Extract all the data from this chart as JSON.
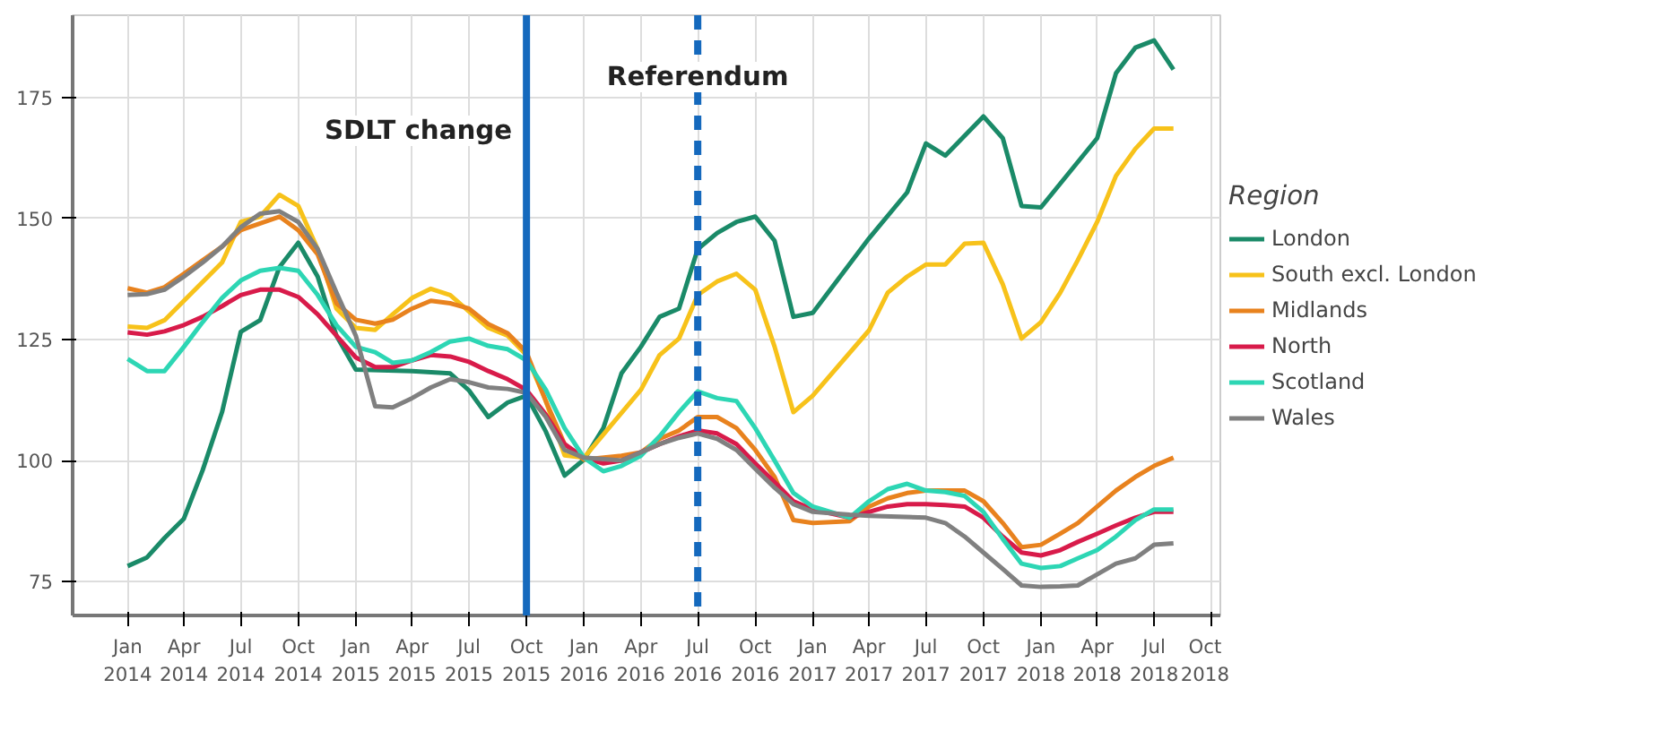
{
  "chart_data": {
    "type": "line",
    "legend_title": "Region",
    "legend": "right",
    "grid": true,
    "line_style": "solid",
    "xlim": [
      "2013-10-05",
      "2018-10-15"
    ],
    "ylim": [
      68,
      192
    ],
    "yticks": [
      75,
      100,
      125,
      150,
      175
    ],
    "xticks": [
      {
        "value": "2014-01",
        "label": "Jan 2014"
      },
      {
        "value": "2014-04",
        "label": "Apr 2014"
      },
      {
        "value": "2014-07",
        "label": "Jul 2014"
      },
      {
        "value": "2014-10",
        "label": "Oct 2014"
      },
      {
        "value": "2015-01",
        "label": "Jan 2015"
      },
      {
        "value": "2015-04",
        "label": "Apr 2015"
      },
      {
        "value": "2015-07",
        "label": "Jul 2015"
      },
      {
        "value": "2015-10",
        "label": "Oct 2015"
      },
      {
        "value": "2016-01",
        "label": "Jan 2016"
      },
      {
        "value": "2016-04",
        "label": "Apr 2016"
      },
      {
        "value": "2016-07",
        "label": "Jul 2016"
      },
      {
        "value": "2016-10",
        "label": "Oct 2016"
      },
      {
        "value": "2017-01",
        "label": "Jan 2017"
      },
      {
        "value": "2017-04",
        "label": "Apr 2017"
      },
      {
        "value": "2017-07",
        "label": "Jul 2017"
      },
      {
        "value": "2017-10",
        "label": "Oct 2017"
      },
      {
        "value": "2018-01",
        "label": "Jan 2018"
      },
      {
        "value": "2018-04",
        "label": "Apr 2018"
      },
      {
        "value": "2018-07",
        "label": "Jul 2018"
      },
      {
        "value": "2018-10",
        "label": "Oct 2018"
      }
    ],
    "ref_lines": [
      {
        "axis": "x",
        "value": "2015-10",
        "label": "SDLT change",
        "color": "#1569bd",
        "line_style": "solid"
      },
      {
        "axis": "x",
        "value": "2016-07",
        "label": "Referendum",
        "color": "#1569bd",
        "line_style": "dashed"
      }
    ],
    "series": [
      {
        "name": "London",
        "color": "#1a8a68",
        "x": [
          "2014-01",
          "2014-02",
          "2014-03",
          "2014-04",
          "2014-05",
          "2014-06",
          "2014-07",
          "2014-08",
          "2014-09",
          "2014-10",
          "2014-11",
          "2014-12",
          "2015-01",
          "2015-04",
          "2015-06",
          "2015-07",
          "2015-08",
          "2015-09",
          "2015-10",
          "2015-11",
          "2015-12",
          "2016-01",
          "2016-02",
          "2016-03",
          "2016-04",
          "2016-05",
          "2016-06",
          "2016-07",
          "2016-08",
          "2016-09",
          "2016-10",
          "2016-11",
          "2016-12",
          "2017-01",
          "2017-04",
          "2017-06",
          "2017-07",
          "2017-08",
          "2017-10",
          "2017-11",
          "2017-12",
          "2018-01",
          "2018-04",
          "2018-05",
          "2018-06",
          "2018-07",
          "2018-08"
        ],
        "values": [
          78.2,
          80,
          84,
          88,
          98,
          110,
          126.6,
          129,
          140,
          145,
          138,
          125.8,
          118.8,
          118.5,
          118,
          114.5,
          109,
          112,
          113.4,
          106,
          96.9,
          100.2,
          106.7,
          118,
          123.5,
          129.7,
          131.4,
          143.7,
          147,
          149.3,
          150.4,
          145.4,
          129.7,
          130.5,
          145.9,
          155.4,
          165.5,
          163,
          171.1,
          166.6,
          152.6,
          152.3,
          166.6,
          180,
          185.3,
          186.8,
          180.8
        ]
      },
      {
        "name": "South excl. London",
        "color": "#f7c21a",
        "x": [
          "2014-01",
          "2014-02",
          "2014-03",
          "2014-04",
          "2014-06",
          "2014-07",
          "2014-08",
          "2014-09",
          "2014-10",
          "2014-11",
          "2014-12",
          "2015-01",
          "2015-02",
          "2015-03",
          "2015-04",
          "2015-05",
          "2015-06",
          "2015-07",
          "2015-08",
          "2015-09",
          "2015-10",
          "2015-11",
          "2015-12",
          "2016-01",
          "2016-04",
          "2016-05",
          "2016-06",
          "2016-07",
          "2016-08",
          "2016-09",
          "2016-10",
          "2016-11",
          "2016-12",
          "2017-01",
          "2017-04",
          "2017-05",
          "2017-06",
          "2017-07",
          "2017-08",
          "2017-09",
          "2017-10",
          "2017-11",
          "2017-12",
          "2018-01",
          "2018-02",
          "2018-03",
          "2018-04",
          "2018-05",
          "2018-06",
          "2018-07",
          "2018-08"
        ],
        "values": [
          127.7,
          127.4,
          129,
          133,
          140.9,
          149.3,
          150.4,
          154.9,
          152.6,
          143.7,
          131.4,
          127.4,
          127,
          130.2,
          133.6,
          135.5,
          134.2,
          130.8,
          127.4,
          125.8,
          121.8,
          112.3,
          101.1,
          100.6,
          114.6,
          121.8,
          125.2,
          134.2,
          137,
          138.6,
          135.3,
          123.5,
          110,
          113.4,
          126.9,
          134.7,
          138,
          140.5,
          140.5,
          144.8,
          145,
          136.4,
          125.2,
          128.6,
          134.7,
          141.4,
          149.3,
          158.8,
          164.4,
          168.6,
          168.6
        ]
      },
      {
        "name": "Midlands",
        "color": "#e8821e",
        "x": [
          "2014-01",
          "2014-02",
          "2014-03",
          "2014-04",
          "2014-05",
          "2014-06",
          "2014-07",
          "2014-08",
          "2014-09",
          "2014-10",
          "2014-11",
          "2014-12",
          "2015-01",
          "2015-02",
          "2015-03",
          "2015-04",
          "2015-05",
          "2015-06",
          "2015-07",
          "2015-08",
          "2015-09",
          "2015-10",
          "2015-11",
          "2015-12",
          "2016-01",
          "2016-03",
          "2016-04",
          "2016-05",
          "2016-06",
          "2016-07",
          "2016-08",
          "2016-09",
          "2016-10",
          "2016-11",
          "2016-12",
          "2017-01",
          "2017-03",
          "2017-04",
          "2017-05",
          "2017-06",
          "2017-07",
          "2017-08",
          "2017-09",
          "2017-10",
          "2017-11",
          "2017-12",
          "2018-01",
          "2018-02",
          "2018-03",
          "2018-04",
          "2018-05",
          "2018-06",
          "2018-07",
          "2018-08"
        ],
        "values": [
          135.6,
          134.7,
          135.8,
          138.6,
          141.4,
          144.2,
          147.6,
          149,
          150.4,
          147.6,
          142.6,
          132.5,
          129.1,
          128.3,
          129.1,
          131.4,
          133,
          132.5,
          131.4,
          128.2,
          126.3,
          122.4,
          112.3,
          103.4,
          100.2,
          101,
          101.7,
          104.5,
          106.2,
          109,
          109,
          106.7,
          102.2,
          96.6,
          87.7,
          87.1,
          87.5,
          90.5,
          92.2,
          93.3,
          93.8,
          93.8,
          93.8,
          91.6,
          87.1,
          82.1,
          82.6,
          84.9,
          87.1,
          90.5,
          93.8,
          96.6,
          98.9,
          100.6
        ]
      },
      {
        "name": "North",
        "color": "#d81b4a",
        "x": [
          "2014-01",
          "2014-02",
          "2014-03",
          "2014-04",
          "2014-05",
          "2014-06",
          "2014-07",
          "2014-08",
          "2014-09",
          "2014-10",
          "2014-11",
          "2014-12",
          "2015-01",
          "2015-02",
          "2015-03",
          "2015-04",
          "2015-05",
          "2015-06",
          "2015-07",
          "2015-08",
          "2015-09",
          "2015-10",
          "2015-11",
          "2015-12",
          "2016-01",
          "2016-02",
          "2016-03",
          "2016-04",
          "2016-05",
          "2016-06",
          "2016-07",
          "2016-08",
          "2016-09",
          "2016-10",
          "2016-11",
          "2016-12",
          "2017-01",
          "2017-03",
          "2017-04",
          "2017-05",
          "2017-06",
          "2017-07",
          "2017-08",
          "2017-09",
          "2017-10",
          "2017-11",
          "2017-12",
          "2018-01",
          "2018-02",
          "2018-03",
          "2018-04",
          "2018-05",
          "2018-06",
          "2018-07",
          "2018-08"
        ],
        "values": [
          126.5,
          126,
          126.7,
          128,
          129.7,
          131.9,
          134.2,
          135.3,
          135.3,
          133.8,
          130.2,
          125.8,
          121.3,
          119.3,
          119.3,
          120.7,
          121.8,
          121.5,
          120.4,
          118.5,
          116.8,
          114.6,
          109.5,
          103.4,
          100.6,
          99.4,
          100,
          101.7,
          103.4,
          105,
          106.2,
          105.6,
          103.4,
          99.4,
          95.5,
          91.6,
          89.9,
          88.2,
          89.4,
          90.5,
          91,
          91,
          90.8,
          90.5,
          88.2,
          84.3,
          81,
          80.4,
          81.5,
          83.2,
          84.9,
          86.6,
          88.2,
          89.4,
          89.4
        ]
      },
      {
        "name": "Scotland",
        "color": "#2dd6b4",
        "x": [
          "2014-01",
          "2014-02",
          "2014-03",
          "2014-04",
          "2014-05",
          "2014-06",
          "2014-07",
          "2014-08",
          "2014-09",
          "2014-10",
          "2014-11",
          "2014-12",
          "2015-01",
          "2015-02",
          "2015-03",
          "2015-04",
          "2015-05",
          "2015-06",
          "2015-07",
          "2015-08",
          "2015-09",
          "2015-10",
          "2015-11",
          "2015-12",
          "2016-01",
          "2016-02",
          "2016-03",
          "2016-04",
          "2016-05",
          "2016-06",
          "2016-07",
          "2016-08",
          "2016-09",
          "2016-10",
          "2016-11",
          "2016-12",
          "2017-01",
          "2017-03",
          "2017-04",
          "2017-05",
          "2017-06",
          "2017-07",
          "2017-08",
          "2017-09",
          "2017-10",
          "2017-11",
          "2017-12",
          "2018-01",
          "2018-02",
          "2018-03",
          "2018-04",
          "2018-05",
          "2018-06",
          "2018-07",
          "2018-08"
        ],
        "values": [
          121,
          118.5,
          118.5,
          123.5,
          128.6,
          133.6,
          137.2,
          139.2,
          139.8,
          139.2,
          134.2,
          128,
          123.5,
          122.4,
          120.2,
          120.7,
          122.4,
          124.6,
          125.2,
          123.7,
          123,
          120.7,
          114.6,
          106.7,
          100.6,
          97.8,
          98.9,
          101,
          105,
          110,
          114.3,
          112.9,
          112.3,
          106.7,
          100,
          93.3,
          90.5,
          88.2,
          91.6,
          94.1,
          95.2,
          93.8,
          93.5,
          92.7,
          89.4,
          83.8,
          78.7,
          77.8,
          78.2,
          79.8,
          81.5,
          84.3,
          87.7,
          89.9,
          89.9
        ]
      },
      {
        "name": "Wales",
        "color": "#808080",
        "x": [
          "2014-01",
          "2014-02",
          "2014-03",
          "2014-04",
          "2014-05",
          "2014-06",
          "2014-07",
          "2014-08",
          "2014-09",
          "2014-10",
          "2014-11",
          "2014-12",
          "2015-01",
          "2015-02",
          "2015-03",
          "2015-04",
          "2015-05",
          "2015-06",
          "2015-07",
          "2015-08",
          "2015-09",
          "2015-10",
          "2015-11",
          "2015-12",
          "2016-01",
          "2016-03",
          "2016-04",
          "2016-05",
          "2016-06",
          "2016-07",
          "2016-08",
          "2016-09",
          "2016-10",
          "2016-11",
          "2016-12",
          "2017-01",
          "2017-03",
          "2017-04",
          "2017-07",
          "2017-08",
          "2017-09",
          "2017-10",
          "2017-11",
          "2017-12",
          "2018-01",
          "2018-02",
          "2018-03",
          "2018-04",
          "2018-05",
          "2018-06",
          "2018-07",
          "2018-08"
        ],
        "values": [
          134.2,
          134.4,
          135.3,
          138,
          140.9,
          144.2,
          148.2,
          151,
          151.5,
          149.3,
          143.7,
          134.7,
          125.8,
          111.2,
          111,
          112.9,
          115.1,
          116.8,
          116.2,
          115.1,
          114.8,
          114,
          109,
          102.2,
          100.6,
          100,
          101.7,
          103.4,
          104.7,
          105.6,
          104.5,
          102.2,
          98.3,
          94.4,
          91,
          89.4,
          88.8,
          88.6,
          88.2,
          87.1,
          84.3,
          81,
          77.6,
          74.2,
          73.9,
          74,
          74.2,
          76.5,
          78.7,
          79.8,
          82.6,
          82.9
        ]
      }
    ]
  }
}
